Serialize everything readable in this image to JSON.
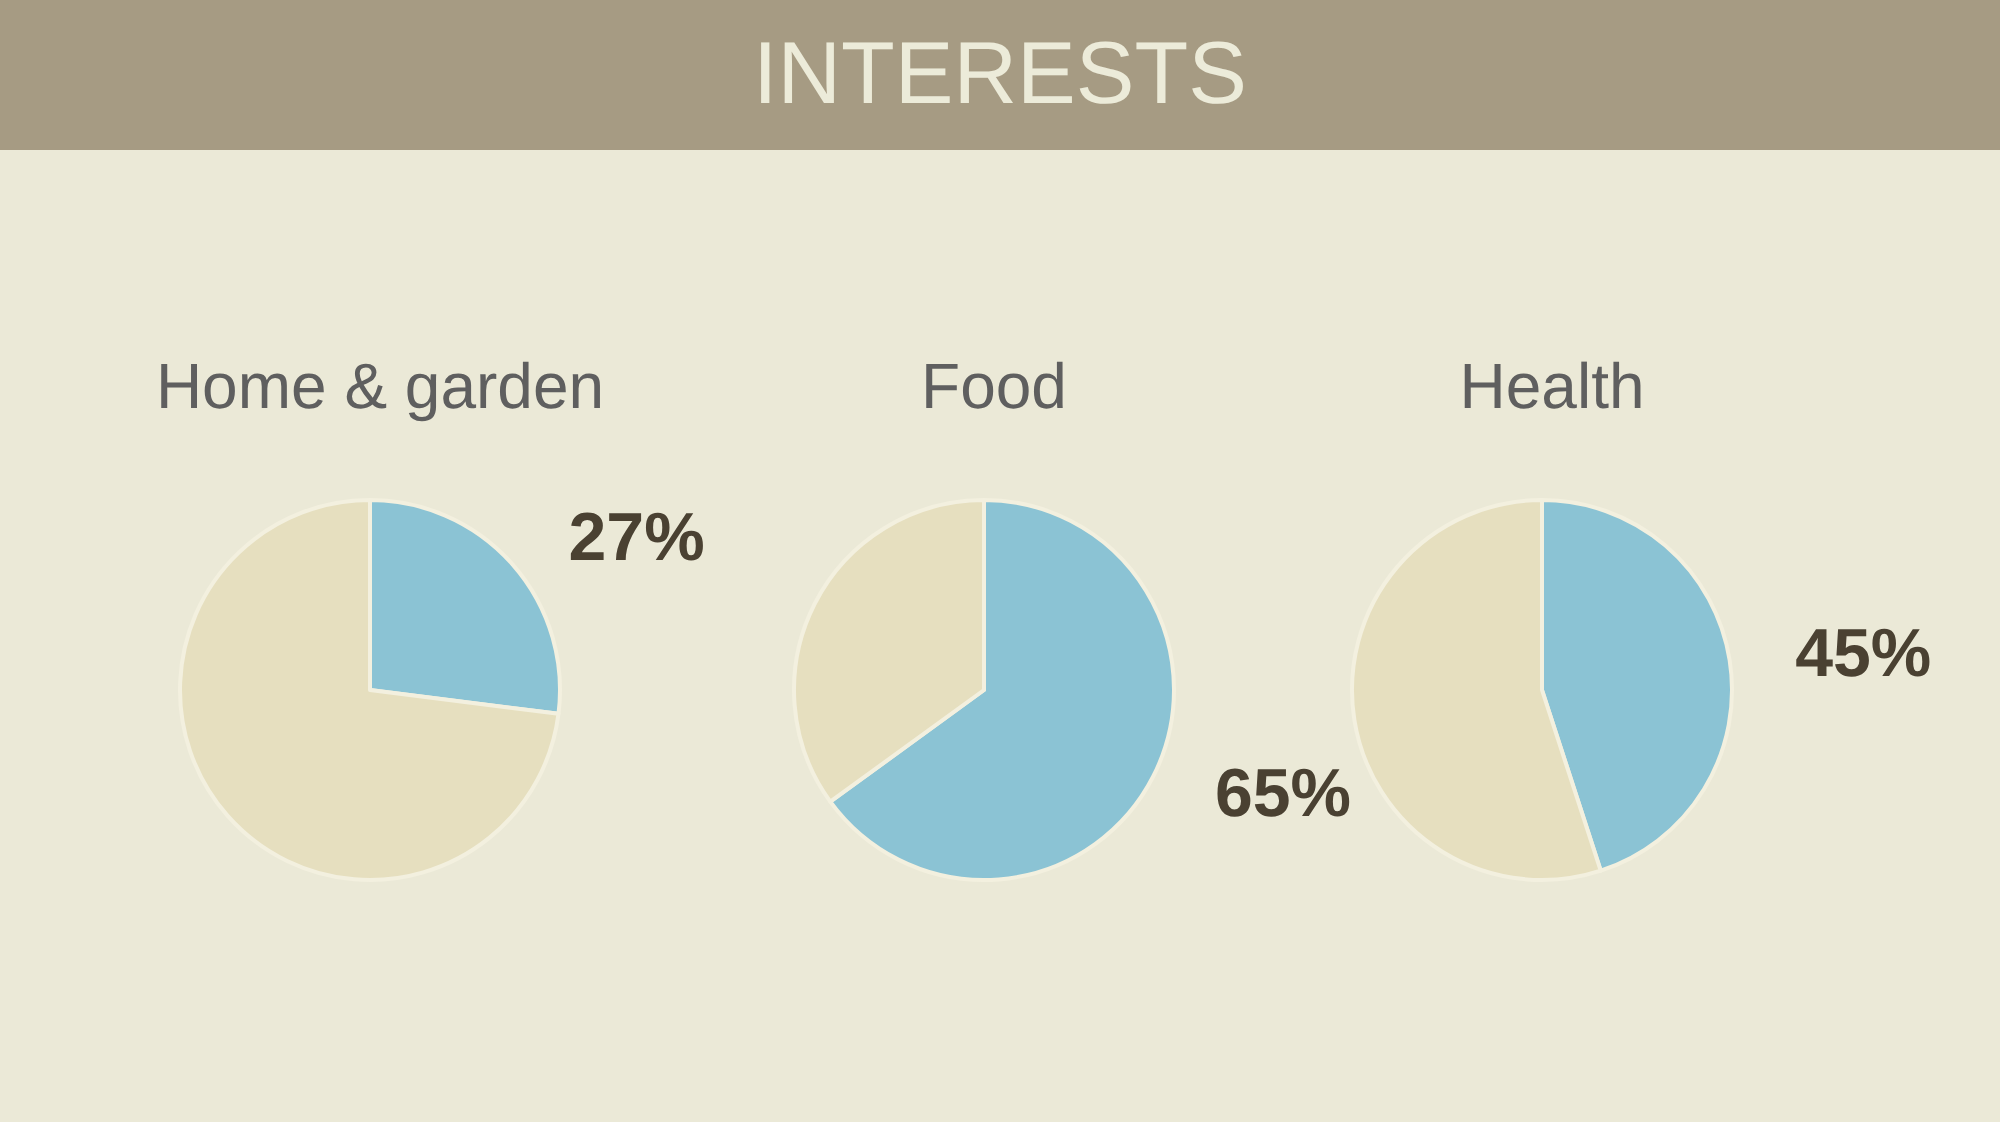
{
  "chart_data": [
    {
      "type": "other",
      "title": "INTERESTS"
    },
    {
      "type": "pie",
      "title": "Home & garden",
      "categories": [
        null,
        null
      ],
      "values": [
        27,
        73
      ],
      "colors": [
        "#8bc3d4",
        "#e6dfbf"
      ],
      "value_labels": [
        "27%",
        null
      ]
    },
    {
      "type": "pie",
      "title": "Food",
      "categories": [
        null,
        null
      ],
      "values": [
        65,
        35
      ],
      "colors": [
        "#8bc3d4",
        "#e6dfbf"
      ],
      "value_labels": [
        "65%",
        null
      ]
    },
    {
      "type": "pie",
      "title": "Health",
      "categories": [
        null,
        null
      ],
      "values": [
        45,
        55
      ],
      "colors": [
        "#8bc3d4",
        "#e6dfbf"
      ],
      "value_labels": [
        "45%",
        null
      ]
    }
  ]
}
